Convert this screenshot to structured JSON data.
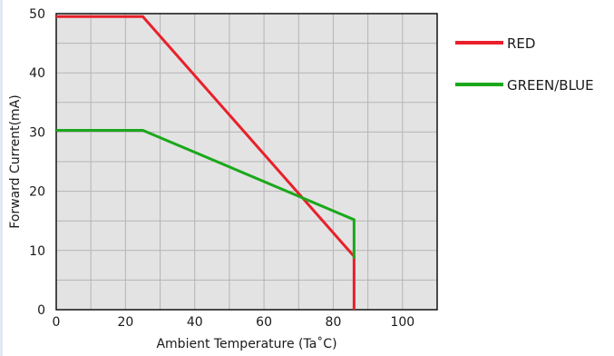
{
  "chart_data": {
    "type": "line",
    "title": "",
    "xlabel": "Ambient Temperature (Ta˚C)",
    "ylabel": "Forward Current(mA)",
    "xlim": [
      0,
      110
    ],
    "ylim": [
      0,
      50
    ],
    "xticks": [
      0,
      20,
      40,
      60,
      80,
      100
    ],
    "yticks": [
      0,
      10,
      20,
      30,
      40,
      50
    ],
    "x_minor_step": 10,
    "y_minor_step": 5,
    "grid": true,
    "legend_position": "right-top",
    "series": [
      {
        "name": "RED",
        "color": "#e8202a",
        "points": [
          [
            0,
            49.5
          ],
          [
            25,
            49.5
          ],
          [
            86,
            9
          ],
          [
            86,
            0
          ]
        ]
      },
      {
        "name": "GREEN/BLUE",
        "color": "#1aa81a",
        "points": [
          [
            0,
            30.3
          ],
          [
            25,
            30.3
          ],
          [
            86,
            15.2
          ],
          [
            86,
            8.6
          ]
        ]
      }
    ]
  }
}
